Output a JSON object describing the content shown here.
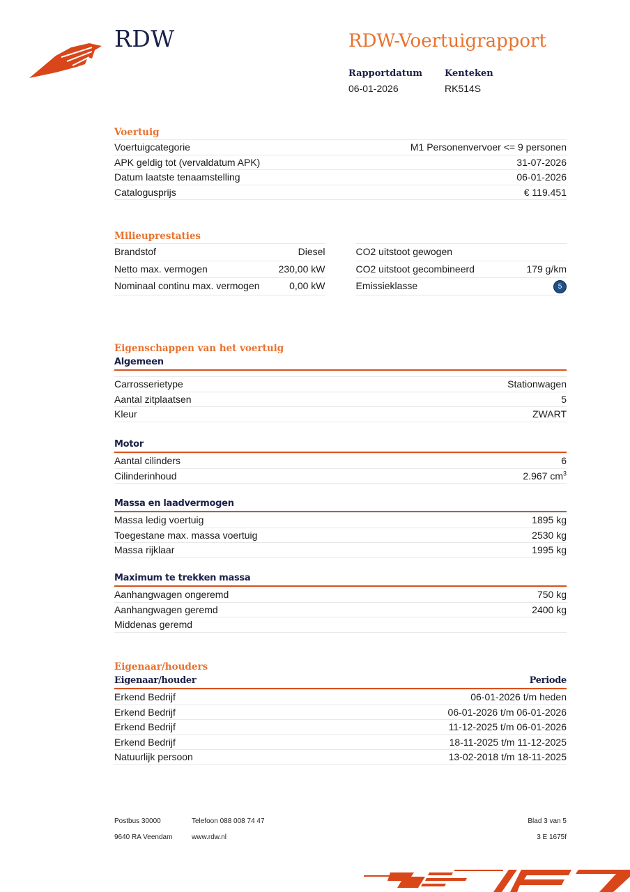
{
  "header": {
    "logo_text": "RDW",
    "title": "RDW-Voertuigrapport",
    "report_date_label": "Rapportdatum",
    "report_date": "06-01-2026",
    "plate_label": "Kenteken",
    "plate": "RK514S"
  },
  "voertuig": {
    "title": "Voertuig",
    "rows": [
      {
        "label": "Voertuigcategorie",
        "value": "M1 Personenvervoer <= 9 personen"
      },
      {
        "label": "APK geldig tot (vervaldatum APK)",
        "value": "31-07-2026"
      },
      {
        "label": "Datum laatste tenaamstelling",
        "value": "06-01-2026"
      },
      {
        "label": "Catalogusprijs",
        "value": "€ 119.451"
      }
    ]
  },
  "milieu": {
    "title": "Milieuprestaties",
    "left": [
      {
        "label": "Brandstof",
        "value": "Diesel"
      },
      {
        "label": "Netto max. vermogen",
        "value": "230,00 kW"
      },
      {
        "label": "Nominaal continu max. vermogen",
        "value": "0,00 kW"
      }
    ],
    "right": [
      {
        "label": "CO2 uitstoot gewogen",
        "value": ""
      },
      {
        "label": "CO2 uitstoot gecombineerd",
        "value": "179 g/km"
      },
      {
        "label": "Emissieklasse",
        "value": "5"
      }
    ],
    "badge_color": "#1e4f86"
  },
  "eigenschappen": {
    "title": "Eigenschappen van het voertuig",
    "algemeen": {
      "title": "Algemeen",
      "rows": [
        {
          "label": "Carrosserietype",
          "value": "Stationwagen"
        },
        {
          "label": "Aantal zitplaatsen",
          "value": "5"
        },
        {
          "label": "Kleur",
          "value": "ZWART"
        }
      ]
    },
    "motor": {
      "title": "Motor",
      "rows": [
        {
          "label": "Aantal cilinders",
          "value": "6"
        },
        {
          "label": "Cilinderinhoud",
          "value": "2.967 cm",
          "unit_sup": "3"
        }
      ]
    },
    "massa": {
      "title": "Massa en laadvermogen",
      "rows": [
        {
          "label": "Massa ledig voertuig",
          "value": "1895 kg"
        },
        {
          "label": "Toegestane max. massa voertuig",
          "value": "2530 kg"
        },
        {
          "label": "Massa rijklaar",
          "value": "1995 kg"
        }
      ]
    },
    "trekken": {
      "title": "Maximum te trekken massa",
      "rows": [
        {
          "label": "Aanhangwagen ongeremd",
          "value": "750 kg"
        },
        {
          "label": "Aanhangwagen geremd",
          "value": "2400 kg"
        },
        {
          "label": "Middenas geremd",
          "value": ""
        }
      ]
    }
  },
  "eigenaar": {
    "title": "Eigenaar/houders",
    "col_owner": "Eigenaar/houder",
    "col_period": "Periode",
    "rows": [
      {
        "label": "Erkend Bedrijf",
        "value": "06-01-2026 t/m heden"
      },
      {
        "label": "Erkend Bedrijf",
        "value": "06-01-2026 t/m 06-01-2026"
      },
      {
        "label": "Erkend Bedrijf",
        "value": "11-12-2025 t/m 06-01-2026"
      },
      {
        "label": "Erkend Bedrijf",
        "value": "18-11-2025 t/m 11-12-2025"
      },
      {
        "label": "Natuurlijk persoon",
        "value": "13-02-2018 t/m 18-11-2025"
      }
    ]
  },
  "footer": {
    "address1": "Postbus 30000",
    "address2": "9640 RA Veendam",
    "phone": "Telefoon 088 008 74 47",
    "web": "www.rdw.nl",
    "page": "Blad 3 van 5",
    "code": "3 E 1675f"
  },
  "colors": {
    "accent": "#e8722e",
    "rule": "#d9531e",
    "navy": "#1b2149"
  }
}
